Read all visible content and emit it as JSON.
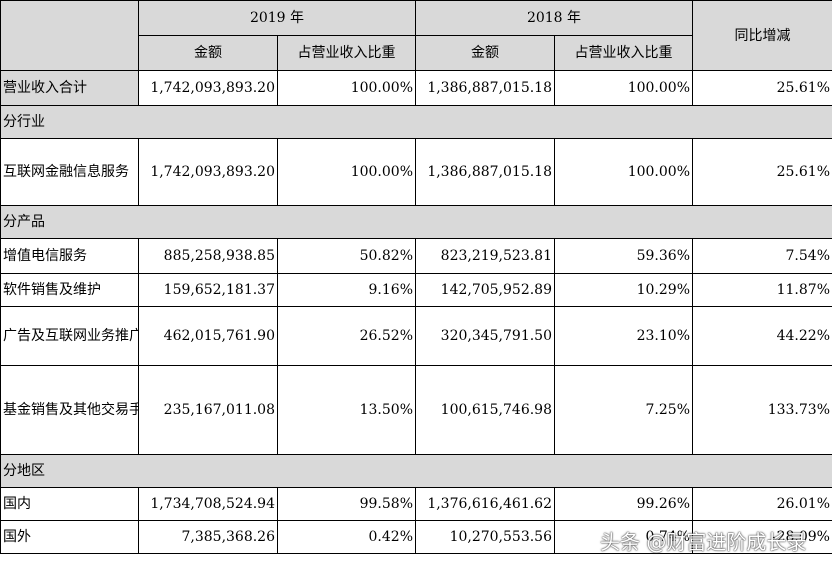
{
  "header": {
    "year_2019": "2019 年",
    "year_2018": "2018 年",
    "yoy": "同比增减",
    "amount": "金额",
    "share": "占营业收入比重"
  },
  "rows": {
    "total": {
      "label": "营业收入合计",
      "a2019": "1,742,093,893.20",
      "p2019": "100.00%",
      "a2018": "1,386,887,015.18",
      "p2018": "100.00%",
      "yoy": "25.61%"
    },
    "sec_industry": "分行业",
    "internet_finance": {
      "label": "互联网金融信息服务",
      "a2019": "1,742,093,893.20",
      "p2019": "100.00%",
      "a2018": "1,386,887,015.18",
      "p2018": "100.00%",
      "yoy": "25.61%"
    },
    "sec_product": "分产品",
    "vas": {
      "label": "增值电信服务",
      "a2019": "885,258,938.85",
      "p2019": "50.82%",
      "a2018": "823,219,523.81",
      "p2018": "59.36%",
      "yoy": "7.54%"
    },
    "software": {
      "label": "软件销售及维护",
      "a2019": "159,652,181.37",
      "p2019": "9.16%",
      "a2018": "142,705,952.89",
      "p2018": "10.29%",
      "yoy": "11.87%"
    },
    "ads": {
      "label": "广告及互联网业务推广服务",
      "a2019": "462,015,761.90",
      "p2019": "26.52%",
      "a2018": "320,345,791.50",
      "p2018": "23.10%",
      "yoy": "44.22%"
    },
    "fund": {
      "label": "基金销售及其他交易手续费等其他业务",
      "a2019": "235,167,011.08",
      "p2019": "13.50%",
      "a2018": "100,615,746.98",
      "p2018": "7.25%",
      "yoy": "133.73%"
    },
    "sec_region": "分地区",
    "domestic": {
      "label": "国内",
      "a2019": "1,734,708,524.94",
      "p2019": "99.58%",
      "a2018": "1,376,616,461.62",
      "p2018": "99.26%",
      "yoy": "26.01%"
    },
    "overseas": {
      "label": "国外",
      "a2019": "7,385,368.26",
      "p2019": "0.42%",
      "a2018": "10,270,553.56",
      "p2018": "0.74%",
      "yoy": "-28.09%"
    }
  },
  "watermark": "头条 @财富进阶成长录"
}
